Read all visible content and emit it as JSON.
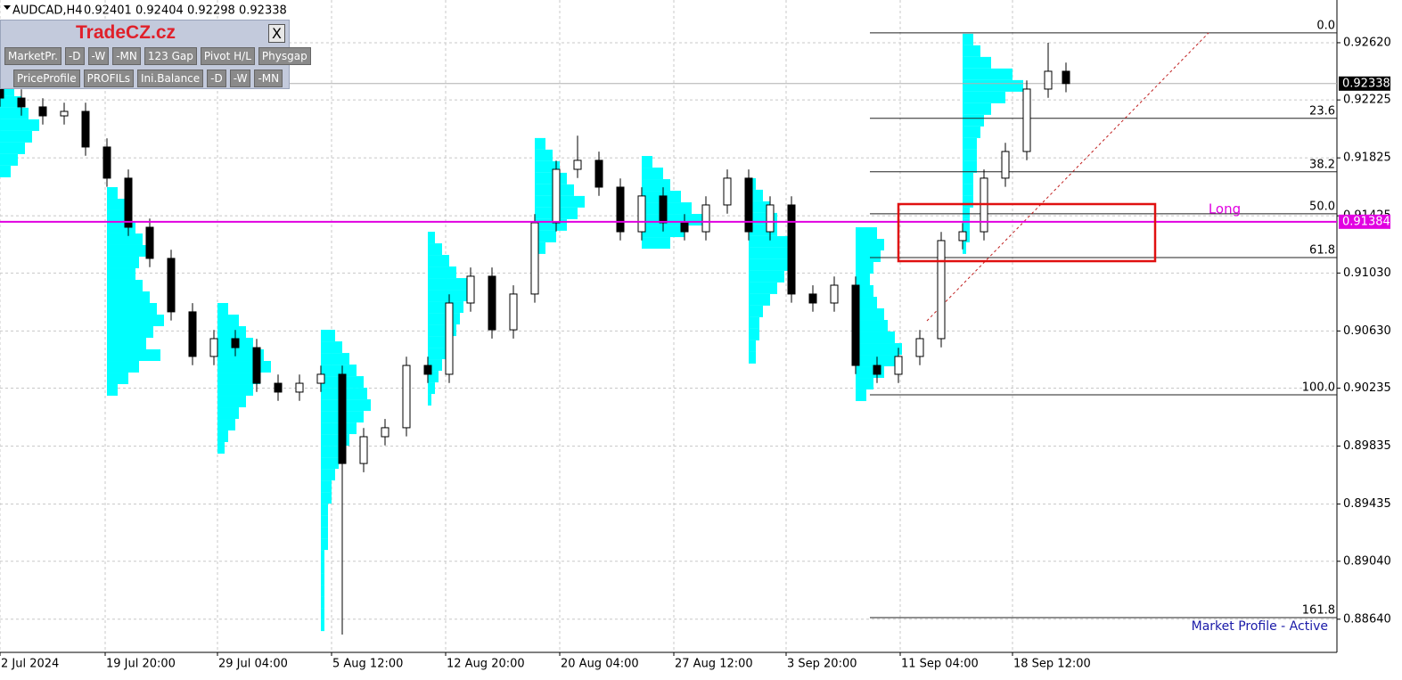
{
  "header": {
    "symbol": "AUDCAD,H4",
    "ohlc": [
      0.92401,
      0.92404,
      0.92298,
      0.92338
    ]
  },
  "panel": {
    "title": "TradeCZ.cz",
    "close": "X",
    "row1": [
      "MarketPr.",
      "-D",
      "-W",
      "-MN",
      "123 Gap",
      "Pivot H/L",
      "Physgap"
    ],
    "row2": [
      "PriceProfile",
      "PROFILs",
      "Ini.Balance",
      "-D",
      "-W",
      "-MN"
    ]
  },
  "chart_data": {
    "type": "candlestick",
    "grid": true,
    "xlim": [
      0,
      375
    ],
    "ylim": [
      0.88411,
      0.92915
    ],
    "yticks": [
      {
        "value": 0.9262,
        "label": "0.92620"
      },
      0.92225,
      0.91825,
      {
        "value": 0.91425,
        "label": "0.91425"
      },
      {
        "value": 0.9103,
        "label": "0.91030"
      },
      {
        "value": 0.9063,
        "label": "0.90630"
      },
      0.90235,
      0.89835,
      0.89435,
      {
        "value": 0.8904,
        "label": "0.89040"
      },
      {
        "value": 0.8864,
        "label": "0.88640"
      }
    ],
    "xticks": [
      {
        "value": 0,
        "label": "2 Jul 2024"
      },
      {
        "value": 29.5,
        "label": "19 Jul 20:00"
      },
      {
        "value": 61,
        "label": "29 Jul 04:00"
      },
      {
        "value": 93,
        "label": "5 Aug 12:00"
      },
      {
        "value": 125,
        "label": "12 Aug 20:00"
      },
      {
        "value": 157,
        "label": "20 Aug 04:00"
      },
      {
        "value": 189,
        "label": "27 Aug 12:00"
      },
      {
        "value": 220.5,
        "label": "3 Sep 20:00"
      },
      {
        "value": 252.5,
        "label": "11 Sep 04:00"
      },
      {
        "value": 284,
        "label": "18 Sep 12:00"
      }
    ],
    "x": [
      0,
      6,
      12,
      18,
      24,
      30,
      36,
      42,
      48,
      54,
      60,
      66,
      72,
      78,
      84,
      90,
      96,
      102,
      108,
      114,
      120,
      126,
      132,
      138,
      144,
      150,
      156,
      162,
      168,
      174,
      180,
      186,
      192,
      198,
      204,
      210,
      216,
      222,
      228,
      234,
      240,
      246,
      252,
      258,
      264,
      270,
      276,
      282,
      288,
      294,
      299
    ],
    "open": [
      0.923,
      0.92238,
      0.92177,
      0.92115,
      0.92146,
      0.919,
      0.91685,
      0.91346,
      0.91131,
      0.90762,
      0.90454,
      0.90577,
      0.90515,
      0.90269,
      0.90208,
      0.90269,
      0.90331,
      0.89715,
      0.899,
      0.89962,
      0.90392,
      0.90331,
      0.90823,
      0.91008,
      0.90638,
      0.90885,
      0.91377,
      0.91746,
      0.91808,
      0.91623,
      0.91315,
      0.91562,
      0.91377,
      0.91315,
      0.915,
      0.91685,
      0.91315,
      0.915,
      0.90885,
      0.90823,
      0.90946,
      0.90392,
      0.90331,
      0.90454,
      0.90577,
      0.91254,
      0.91315,
      0.91685,
      0.91869,
      0.923,
      0.92423
    ],
    "high": [
      0.9236,
      0.92298,
      0.92237,
      0.92206,
      0.92206,
      0.9196,
      0.91745,
      0.91406,
      0.91191,
      0.90822,
      0.90637,
      0.90637,
      0.90575,
      0.90329,
      0.90329,
      0.90391,
      0.90391,
      0.8996,
      0.90022,
      0.90452,
      0.90452,
      0.90883,
      0.91068,
      0.91068,
      0.90945,
      0.91437,
      0.91806,
      0.91978,
      0.91868,
      0.91683,
      0.91622,
      0.91622,
      0.91437,
      0.9156,
      0.91745,
      0.91745,
      0.9156,
      0.9156,
      0.90945,
      0.91006,
      0.91006,
      0.90452,
      0.90514,
      0.90637,
      0.91314,
      0.91375,
      0.91745,
      0.91929,
      0.9236,
      0.9262,
      0.92483
    ],
    "low": [
      0.92178,
      0.92117,
      0.92055,
      0.92055,
      0.9184,
      0.91625,
      0.91286,
      0.91071,
      0.90702,
      0.90394,
      0.90394,
      0.90455,
      0.90209,
      0.90148,
      0.90148,
      0.90209,
      0.88534,
      0.89655,
      0.8984,
      0.89902,
      0.90271,
      0.90271,
      0.90763,
      0.90578,
      0.90578,
      0.90825,
      0.91317,
      0.91686,
      0.91563,
      0.91255,
      0.91255,
      0.91317,
      0.91255,
      0.91255,
      0.9144,
      0.91255,
      0.91255,
      0.90825,
      0.90763,
      0.90763,
      0.90332,
      0.90271,
      0.90271,
      0.90394,
      0.90517,
      0.91194,
      0.91255,
      0.91625,
      0.91809,
      0.9224,
      0.92278
    ],
    "close": [
      0.92238,
      0.92177,
      0.92115,
      0.92146,
      0.919,
      0.91685,
      0.91346,
      0.91131,
      0.90762,
      0.90454,
      0.90577,
      0.90515,
      0.90269,
      0.90208,
      0.90269,
      0.90331,
      0.89715,
      0.899,
      0.89962,
      0.90392,
      0.90331,
      0.90823,
      0.91008,
      0.90638,
      0.90885,
      0.91377,
      0.91746,
      0.91808,
      0.91623,
      0.91315,
      0.91562,
      0.91377,
      0.91315,
      0.915,
      0.91685,
      0.91315,
      0.915,
      0.90885,
      0.90823,
      0.90946,
      0.90392,
      0.90331,
      0.90454,
      0.90577,
      0.91254,
      0.91315,
      0.91685,
      0.91869,
      0.923,
      0.92423,
      0.92338
    ],
    "last_price": 0.92338,
    "profile_color": "#00ffff",
    "profiles": [
      {
        "x": 0,
        "top": 0.92331,
        "step": 0.0008,
        "lengths": [
          4,
          6,
          8,
          11,
          9,
          7,
          5,
          3
        ]
      },
      {
        "x": 30,
        "top": 0.91623,
        "step": 0.0008,
        "lengths": [
          3,
          5,
          6,
          8,
          10,
          12,
          9,
          8,
          10,
          12,
          14,
          16,
          13,
          11,
          15,
          9,
          6,
          3
        ]
      },
      {
        "x": 61,
        "top": 0.90823,
        "step": 0.0008,
        "lengths": [
          3,
          6,
          8,
          10,
          13,
          15,
          12,
          10,
          8,
          6,
          5,
          3,
          2
        ]
      },
      {
        "x": 90,
        "top": 0.90638,
        "step": 0.0008,
        "lengths": [
          4,
          6,
          8,
          10,
          12,
          13,
          14,
          12,
          10,
          8,
          6,
          5,
          4,
          3,
          3,
          2,
          2,
          2,
          2,
          1,
          1,
          1,
          1,
          1,
          1,
          1
        ]
      },
      {
        "x": 120,
        "top": 0.91315,
        "step": 0.0008,
        "lengths": [
          2,
          4,
          6,
          8,
          11,
          12,
          10,
          9,
          8,
          7,
          5,
          4,
          3,
          2,
          1
        ]
      },
      {
        "x": 150,
        "top": 0.91962,
        "step": 0.0008,
        "lengths": [
          3,
          5,
          7,
          9,
          11,
          14,
          12,
          9,
          6,
          3
        ]
      },
      {
        "x": 180,
        "top": 0.91838,
        "step": 0.0008,
        "lengths": [
          3,
          6,
          8,
          11,
          14,
          17,
          12,
          8
        ]
      },
      {
        "x": 210,
        "top": 0.91685,
        "step": 0.0008,
        "lengths": [
          2,
          4,
          6,
          8,
          8,
          11,
          13,
          12,
          10,
          8,
          6,
          4,
          3,
          3,
          2,
          2
        ]
      },
      {
        "x": 240,
        "top": 0.91346,
        "step": 0.0008,
        "lengths": [
          6,
          8,
          7,
          5,
          4,
          5,
          6,
          8,
          9,
          11,
          13,
          12,
          8,
          5,
          3
        ]
      },
      {
        "x": 270,
        "top": 0.92682,
        "step": 0.0008,
        "lengths": [
          3,
          5,
          8,
          14,
          17,
          12,
          8,
          6,
          5,
          4,
          4,
          4,
          3,
          3,
          3,
          2,
          2,
          2,
          1
        ]
      }
    ],
    "fib": {
      "x0": 244,
      "levels": [
        {
          "label": "0.0",
          "price": 0.92688
        },
        {
          "label": "23.6",
          "price": 0.92098
        },
        {
          "label": "38.2",
          "price": 0.91729
        },
        {
          "label": "50.0",
          "price": 0.91439
        },
        {
          "label": "61.8",
          "price": 0.91137
        },
        {
          "label": "100.0",
          "price": 0.90189
        },
        {
          "label": "161.8",
          "price": 0.88651
        }
      ]
    },
    "hline": {
      "price": 0.91384,
      "color": "#e100e1"
    },
    "zone": {
      "label": "Long",
      "x0": 252,
      "x1": 324,
      "top": 0.91506,
      "bottom": 0.91112,
      "color": "#e01010"
    },
    "trendline": {
      "x": [
        260,
        339
      ],
      "price": [
        0.907,
        0.92688
      ],
      "color": "#c02020"
    },
    "status": "Market Profile - Active"
  }
}
